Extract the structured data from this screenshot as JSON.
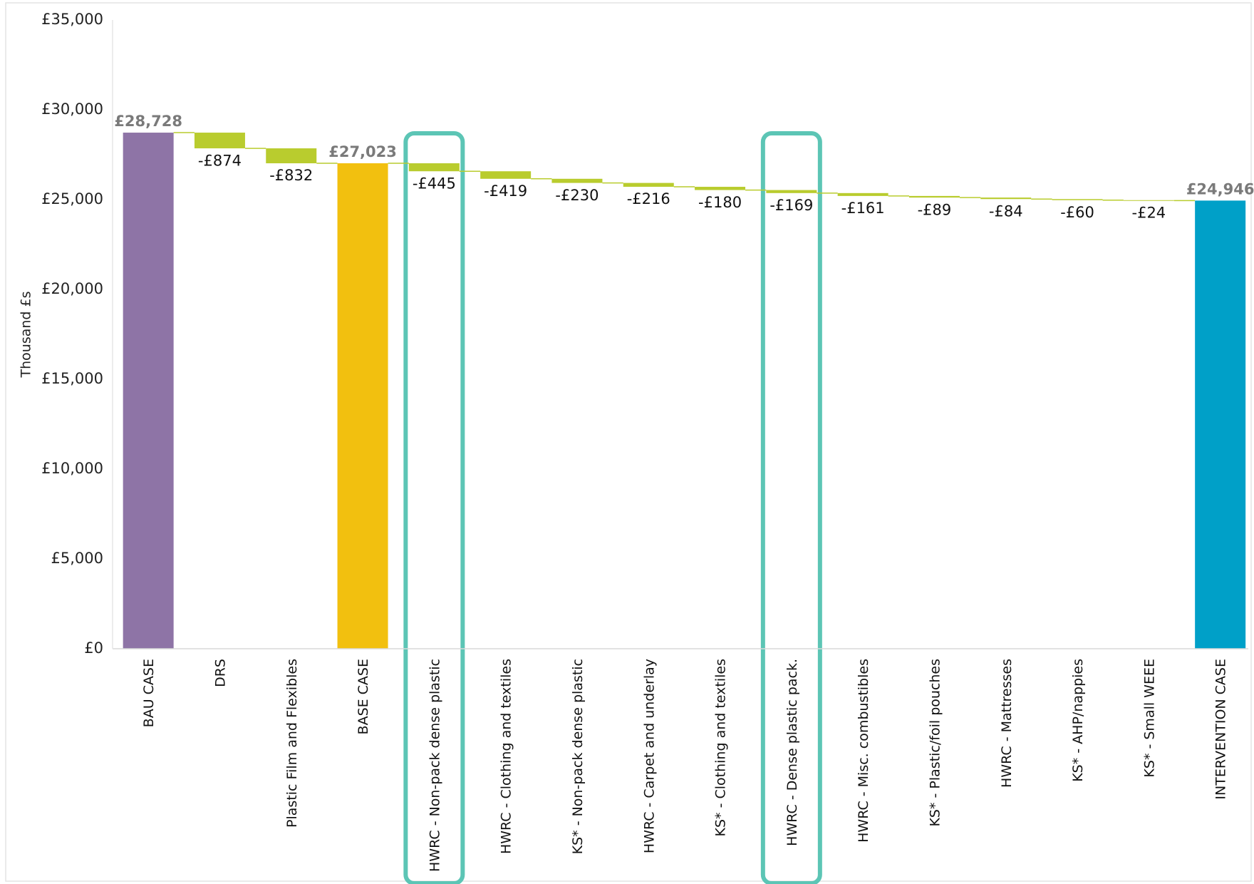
{
  "chart_data": {
    "type": "waterfall",
    "ylabel": "Thousand £s",
    "ylim": [
      0,
      35000
    ],
    "yticks": [
      0,
      5000,
      10000,
      15000,
      20000,
      25000,
      30000,
      35000
    ],
    "ytick_labels": [
      "£0",
      "£5,000",
      "£10,000",
      "£15,000",
      "£20,000",
      "£25,000",
      "£30,000",
      "£35,000"
    ],
    "grid": false,
    "legend": "none",
    "colors": {
      "bau": "#8e74a6",
      "base": "#f2c00f",
      "intervention": "#00a0c8",
      "delta": "#b9cc2e",
      "highlight": "#5cc5b5",
      "connector": "#b9cc2e"
    },
    "bars": [
      {
        "category": "BAU CASE",
        "kind": "total",
        "value": 28728,
        "label": "£28,728",
        "color_key": "bau",
        "highlight": false
      },
      {
        "category": "DRS",
        "kind": "delta",
        "value": -874,
        "label": "-£874",
        "highlight": false
      },
      {
        "category": "Plastic Film and Flexibles",
        "kind": "delta",
        "value": -832,
        "label": "-£832",
        "highlight": false
      },
      {
        "category": "BASE CASE",
        "kind": "total",
        "value": 27023,
        "label": "£27,023",
        "color_key": "base",
        "highlight": false
      },
      {
        "category": "HWRC - Non-pack dense plastic",
        "kind": "delta",
        "value": -445,
        "label": "-£445",
        "highlight": true
      },
      {
        "category": "HWRC - Clothing and textiles",
        "kind": "delta",
        "value": -419,
        "label": "-£419",
        "highlight": false
      },
      {
        "category": "KS* - Non-pack dense plastic",
        "kind": "delta",
        "value": -230,
        "label": "-£230",
        "highlight": false
      },
      {
        "category": "HWRC - Carpet and underlay",
        "kind": "delta",
        "value": -216,
        "label": "-£216",
        "highlight": false
      },
      {
        "category": "KS* - Clothing and textiles",
        "kind": "delta",
        "value": -180,
        "label": "-£180",
        "highlight": false
      },
      {
        "category": "HWRC - Dense plastic pack.",
        "kind": "delta",
        "value": -169,
        "label": "-£169",
        "highlight": true
      },
      {
        "category": "HWRC - Misc. combustibles",
        "kind": "delta",
        "value": -161,
        "label": "-£161",
        "highlight": false
      },
      {
        "category": "KS* - Plastic/foil pouches",
        "kind": "delta",
        "value": -89,
        "label": "-£89",
        "highlight": false
      },
      {
        "category": "HWRC - Mattresses",
        "kind": "delta",
        "value": -84,
        "label": "-£84",
        "highlight": false
      },
      {
        "category": "KS* - AHP/nappies",
        "kind": "delta",
        "value": -60,
        "label": "-£60",
        "highlight": false
      },
      {
        "category": "KS* - Small WEEE",
        "kind": "delta",
        "value": -24,
        "label": "-£24",
        "highlight": false
      },
      {
        "category": "INTERVENTION CASE",
        "kind": "total",
        "value": 24946,
        "label": "£24,946",
        "color_key": "intervention",
        "highlight": false
      }
    ]
  }
}
